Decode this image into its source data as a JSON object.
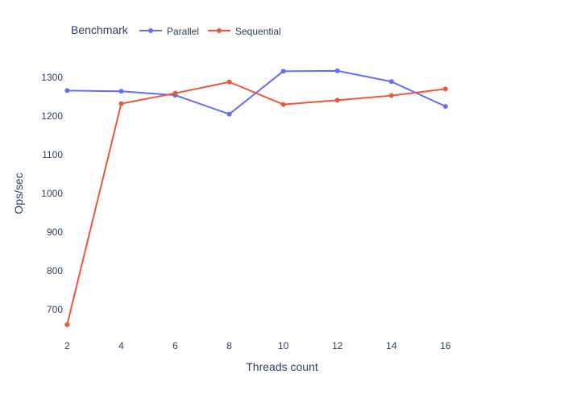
{
  "chart_data": {
    "type": "line",
    "xlabel": "Threads count",
    "ylabel": "Ops/sec",
    "x": [
      2,
      4,
      6,
      8,
      10,
      12,
      14,
      16
    ],
    "x_ticks": [
      "2",
      "4",
      "6",
      "8",
      "10",
      "12",
      "14",
      "16"
    ],
    "y_ticks": [
      "700",
      "800",
      "900",
      "1000",
      "1100",
      "1200",
      "1300"
    ],
    "xlim": [
      1.9,
      18
    ],
    "ylim": [
      625,
      1375
    ],
    "grid": false,
    "legend": {
      "title": "Benchmark",
      "placement": "top-left, horizontal"
    },
    "series": [
      {
        "name": "Parallel",
        "color": "#636efa",
        "values": [
          1266,
          1264,
          1254,
          1205,
          1316,
          1317,
          1289,
          1225
        ]
      },
      {
        "name": "Sequential",
        "color": "#ef553b",
        "values": [
          661,
          1232,
          1259,
          1288,
          1230,
          1241,
          1253,
          1270
        ]
      }
    ]
  }
}
